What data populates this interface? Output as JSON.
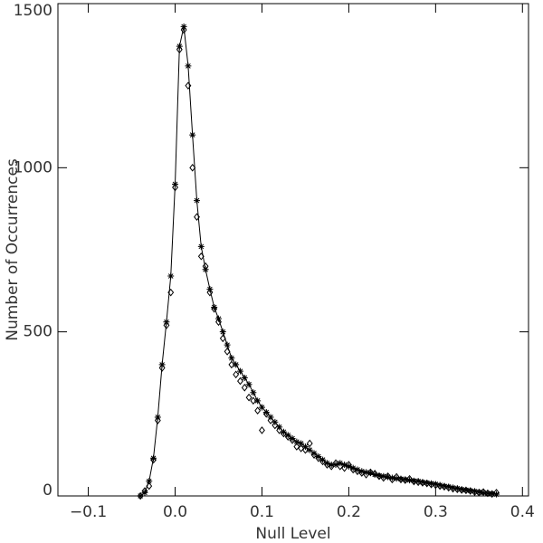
{
  "chart_data": {
    "type": "scatter",
    "x_label": "Null Level",
    "y_label": "Number of Occurrences",
    "xlim": [
      -0.135,
      0.407
    ],
    "ylim": [
      0,
      1500
    ],
    "xticks": [
      {
        "value": -0.1,
        "label": "−0.1"
      },
      {
        "value": 0,
        "label": "0.0"
      },
      0.1,
      0.2,
      0.3,
      0.4
    ],
    "yticks": [
      0,
      500,
      1000,
      1500
    ],
    "x": [
      -0.04,
      -0.035,
      -0.03,
      -0.025,
      -0.02,
      -0.015,
      -0.01,
      -0.005,
      0,
      0.005,
      0.01,
      0.015,
      0.02,
      0.025,
      0.03,
      0.035,
      0.04,
      0.045,
      0.05,
      0.055,
      0.06,
      0.065,
      0.07,
      0.075,
      0.08,
      0.085,
      0.09,
      0.095,
      0.1,
      0.105,
      0.11,
      0.115,
      0.12,
      0.125,
      0.13,
      0.135,
      0.14,
      0.145,
      0.15,
      0.155,
      0.16,
      0.165,
      0.17,
      0.175,
      0.18,
      0.185,
      0.19,
      0.195,
      0.2,
      0.205,
      0.21,
      0.215,
      0.22,
      0.225,
      0.23,
      0.235,
      0.24,
      0.245,
      0.25,
      0.255,
      0.26,
      0.265,
      0.27,
      0.275,
      0.28,
      0.285,
      0.29,
      0.295,
      0.3,
      0.305,
      0.31,
      0.315,
      0.32,
      0.325,
      0.33,
      0.335,
      0.34,
      0.345,
      0.35,
      0.355,
      0.36,
      0.365,
      0.37
    ],
    "series": [
      {
        "marker": "asterisk",
        "line": true,
        "color": "#000000",
        "values": [
          0,
          10,
          45,
          115,
          240,
          400,
          530,
          670,
          950,
          1370,
          1430,
          1310,
          1100,
          900,
          760,
          690,
          630,
          575,
          540,
          500,
          460,
          420,
          400,
          380,
          360,
          340,
          315,
          290,
          270,
          255,
          240,
          225,
          210,
          195,
          185,
          175,
          165,
          160,
          150,
          140,
          130,
          120,
          110,
          100,
          95,
          95,
          100,
          95,
          90,
          85,
          80,
          75,
          72,
          70,
          65,
          62,
          60,
          58,
          55,
          53,
          52,
          50,
          48,
          46,
          45,
          42,
          40,
          38,
          36,
          33,
          30,
          28,
          25,
          23,
          20,
          18,
          16,
          14,
          12,
          10,
          8,
          7,
          5
        ]
      },
      {
        "marker": "diamond",
        "line": false,
        "color": "#000000",
        "values": [
          0,
          15,
          30,
          110,
          230,
          390,
          520,
          620,
          940,
          1360,
          1420,
          1250,
          1000,
          850,
          730,
          700,
          620,
          570,
          530,
          480,
          440,
          400,
          370,
          350,
          330,
          300,
          290,
          260,
          200,
          250,
          230,
          215,
          200,
          190,
          180,
          170,
          150,
          145,
          140,
          160,
          125,
          115,
          105,
          95,
          90,
          100,
          90,
          85,
          95,
          80,
          75,
          70,
          65,
          72,
          68,
          60,
          55,
          60,
          50,
          58,
          50,
          48,
          52,
          44,
          42,
          40,
          38,
          35,
          33,
          30,
          28,
          25,
          22,
          20,
          18,
          17,
          15,
          12,
          10,
          12,
          8,
          6,
          10
        ]
      }
    ]
  }
}
